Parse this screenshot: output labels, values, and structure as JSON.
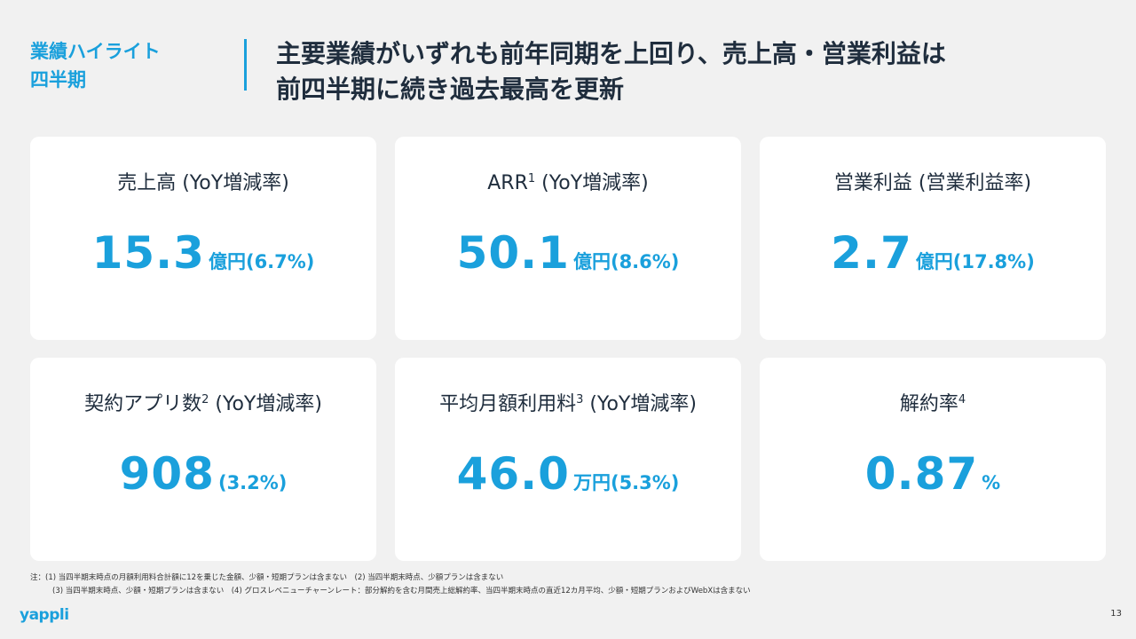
{
  "header": {
    "section_line1": "業績ハイライト",
    "section_line2": "四半期",
    "headline_line1": "主要業績がいずれも前年同期を上回り、売上高・営業利益は",
    "headline_line2": "前四半期に続き過去最高を更新"
  },
  "colors": {
    "accent": "#1aa0dc",
    "text": "#1f2d3d",
    "card_bg": "#ffffff",
    "page_bg": "#f1f1f1"
  },
  "kpis": [
    {
      "label": "売上高",
      "sup": "",
      "label_suffix": " (YoY増減率)",
      "value": "15.3",
      "unit": "億円(6.7%)"
    },
    {
      "label": "ARR",
      "sup": "1",
      "label_suffix": " (YoY増減率)",
      "value": "50.1",
      "unit": "億円(8.6%)"
    },
    {
      "label": "営業利益",
      "sup": "",
      "label_suffix": " (営業利益率)",
      "value": "2.7",
      "unit": "億円(17.8%)"
    },
    {
      "label": "契約アプリ数",
      "sup": "2",
      "label_suffix": " (YoY増減率)",
      "value": "908",
      "unit": "(3.2%)"
    },
    {
      "label": "平均月額利用料",
      "sup": "3",
      "label_suffix": " (YoY増減率)",
      "value": "46.0",
      "unit": "万円(5.3%)"
    },
    {
      "label": "解約率",
      "sup": "4",
      "label_suffix": "",
      "value": "0.87",
      "unit": "%"
    }
  ],
  "footnotes": {
    "line1": "注：(1) 当四半期末時点の月額利用料合計額に12を乗じた金額、少額・短期プランは含まない　(2) 当四半期末時点、少額プランは含まない",
    "line2": "(3) 当四半期末時点、少額・短期プランは含まない　(4) グロスレベニューチャーンレート：部分解約を含む月間売上総解約率、当四半期末時点の直近12カ月平均、少額・短期プランおよびWebXは含まない"
  },
  "footer": {
    "logo": "yappli",
    "page_number": "13"
  }
}
